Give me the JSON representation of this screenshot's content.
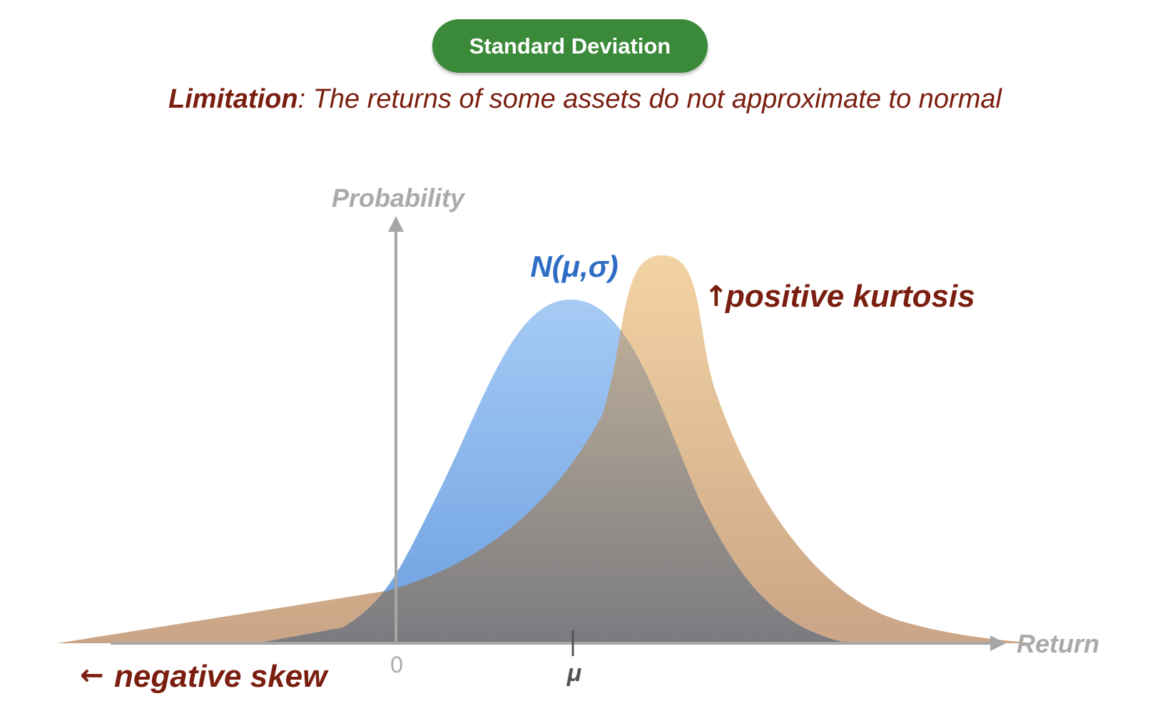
{
  "header": {
    "badge": "Standard Deviation",
    "subtitle_label": "Limitation",
    "subtitle_text": ": The returns of some assets do not approximate to normal"
  },
  "diagram": {
    "y_axis_label": "Probability",
    "x_axis_label": "Return",
    "tick_zero": "0",
    "tick_mu": "μ",
    "normal_label": "N(μ,σ)",
    "kurtosis_arrow": "↑",
    "kurtosis_label": "positive kurtosis",
    "skew_arrow": "←",
    "skew_label": "negative skew"
  },
  "colors": {
    "badge": "#3a8a3a",
    "annotation": "#7a1e10",
    "normal_curve": "#9cc4f2",
    "skewed_curve": "#e8c49a",
    "axis": "#a6a6a6"
  }
}
